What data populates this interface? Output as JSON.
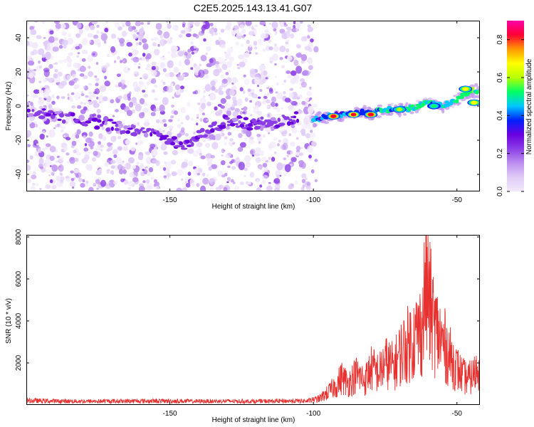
{
  "title": "C2E5.2025.143.13.41.G07",
  "colors": {
    "snr_line": "#e8312f",
    "axis": "#000000",
    "colormap": [
      "#f2e9fb",
      "#e0ccf7",
      "#bc8ef0",
      "#8b3ee6",
      "#6a00e0",
      "#0022ff",
      "#00c8ff",
      "#00ff66",
      "#b8ff00",
      "#ffff00",
      "#ff9900",
      "#ff0033",
      "#ff00aa"
    ]
  },
  "chart_data": [
    {
      "type": "heatmap",
      "title": "C2E5.2025.143.13.41.G07",
      "xlabel": "Height of straight line (km)",
      "ylabel": "Frequency (Hz)",
      "xlim": [
        -200,
        -42
      ],
      "ylim": [
        -50,
        50
      ],
      "xticks": [
        "-150",
        "-100",
        "-50"
      ],
      "xtick_values": [
        -150,
        -100,
        -50
      ],
      "yticks": [
        "-40",
        "-20",
        "0",
        "20",
        "40"
      ],
      "ytick_values": [
        -40,
        -20,
        0,
        20,
        40
      ],
      "colorbar": {
        "label": "Normalized spectral amplitude",
        "range": [
          0,
          0.9
        ],
        "ticks": [
          "0.0",
          "0.2",
          "0.4",
          "0.6",
          "0.8"
        ],
        "tick_values": [
          0.0,
          0.2,
          0.4,
          0.6,
          0.8
        ]
      },
      "noise_region_x": [
        -200,
        -99
      ],
      "signal_track": [
        {
          "x": -100,
          "y": -8
        },
        {
          "x": -95,
          "y": -6
        },
        {
          "x": -90,
          "y": -5
        },
        {
          "x": -85,
          "y": -4
        },
        {
          "x": -80,
          "y": -4
        },
        {
          "x": -75,
          "y": -2
        },
        {
          "x": -70,
          "y": -2
        },
        {
          "x": -65,
          "y": -1
        },
        {
          "x": -60,
          "y": 3
        },
        {
          "x": -55,
          "y": 0
        },
        {
          "x": -50,
          "y": 4
        },
        {
          "x": -45,
          "y": 9
        },
        {
          "x": -42,
          "y": 9
        }
      ],
      "signal_peaks": [
        {
          "x": -93,
          "y": -6,
          "amp": 0.85
        },
        {
          "x": -86,
          "y": -5,
          "amp": 0.82
        },
        {
          "x": -80,
          "y": -5,
          "amp": 0.85
        },
        {
          "x": -70,
          "y": -2,
          "amp": 0.6
        },
        {
          "x": -58,
          "y": 0,
          "amp": 0.5
        },
        {
          "x": -47,
          "y": 10,
          "amp": 0.65
        },
        {
          "x": -44,
          "y": 2,
          "amp": 0.7
        }
      ]
    },
    {
      "type": "line",
      "xlabel": "Height of straight line (km)",
      "ylabel": "SNR (10 * v/v)",
      "xlim": [
        -200,
        -42
      ],
      "ylim": [
        0,
        8100
      ],
      "xticks": [
        "-150",
        "-100",
        "-50"
      ],
      "xtick_values": [
        -150,
        -100,
        -50
      ],
      "yticks": [
        "2000",
        "4000",
        "6000",
        "8000"
      ],
      "ytick_values": [
        2000,
        4000,
        6000,
        8000
      ],
      "series": [
        {
          "x": [
            -200,
            -190,
            -180,
            -170,
            -160,
            -150,
            -140,
            -130,
            -120,
            -110,
            -102,
            -98,
            -95,
            -92,
            -90,
            -88,
            -85,
            -82,
            -80,
            -77,
            -75,
            -72,
            -70,
            -68,
            -66,
            -64,
            -62,
            -61,
            -60,
            -58,
            -56,
            -54,
            -52,
            -50,
            -48,
            -46,
            -44,
            -42
          ],
          "values": [
            280,
            240,
            230,
            240,
            250,
            250,
            230,
            240,
            230,
            250,
            250,
            400,
            800,
            1300,
            1800,
            1400,
            2000,
            1600,
            2400,
            2100,
            2800,
            2500,
            3300,
            3800,
            4200,
            4600,
            5100,
            8000,
            7200,
            5200,
            4400,
            3800,
            3000,
            2400,
            1900,
            1700,
            2000,
            2800
          ]
        }
      ]
    }
  ]
}
